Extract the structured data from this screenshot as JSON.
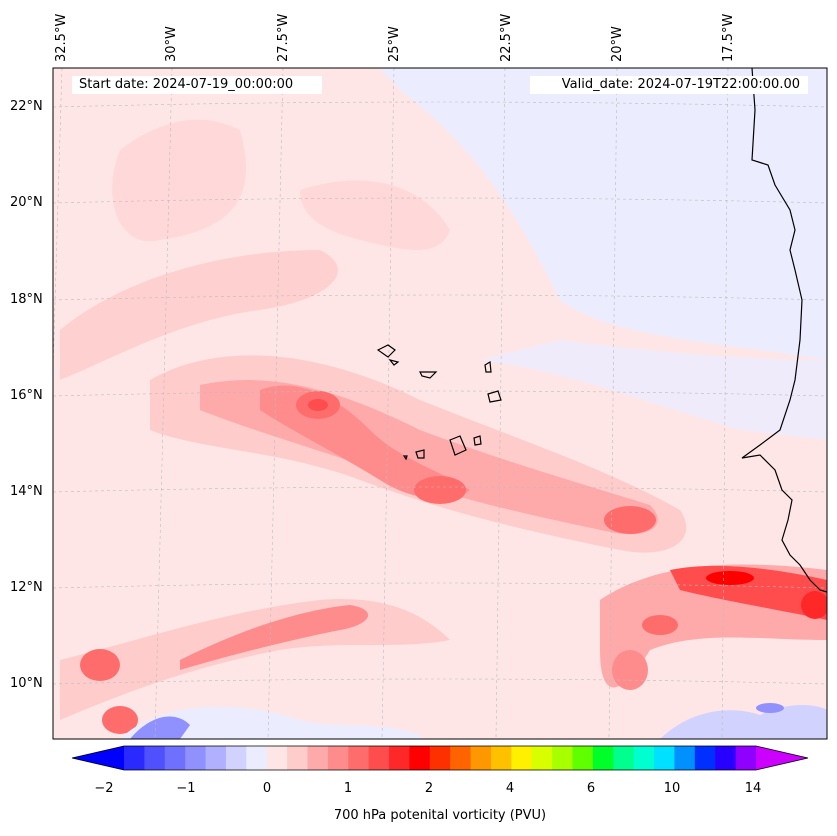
{
  "header": {
    "start_date": "Start date: 2024-07-19_00:00:00",
    "valid_date": "Valid_date: 2024-07-19T22:00:00.00"
  },
  "axes": {
    "longitude_labels": [
      "32.5°W",
      "30°W",
      "27.5°W",
      "25°W",
      "22.5°W",
      "20°W",
      "17.5°W"
    ],
    "latitude_labels": [
      "22°N",
      "20°N",
      "18°N",
      "16°N",
      "14°N",
      "12°N",
      "10°N"
    ]
  },
  "colorbar": {
    "title": "700 hPa potenital vorticity (PVU)",
    "tick_labels": [
      "−2",
      "−1",
      "0",
      "1",
      "2",
      "4",
      "6",
      "10",
      "14"
    ],
    "colors": [
      "#0000ff",
      "#2a2aff",
      "#5050ff",
      "#7070ff",
      "#9090ff",
      "#b0b0ff",
      "#d2d2ff",
      "#ececff",
      "#ffe6e6",
      "#ffcccc",
      "#ffaaaa",
      "#ff8c8c",
      "#ff6c6c",
      "#ff4c4c",
      "#ff2828",
      "#ff0000",
      "#ff3000",
      "#ff6400",
      "#ff9800",
      "#ffc000",
      "#fff000",
      "#d8ff00",
      "#a8ff00",
      "#60ff00",
      "#00ff28",
      "#00ff8c",
      "#00ffd0",
      "#00e0ff",
      "#0090ff",
      "#0030ff",
      "#2800ff",
      "#9000ff",
      "#cc00ff"
    ]
  },
  "colors": {
    "background_pv": "#ffe6e6",
    "negative_region": "#ececff",
    "coastline": "#000000"
  }
}
